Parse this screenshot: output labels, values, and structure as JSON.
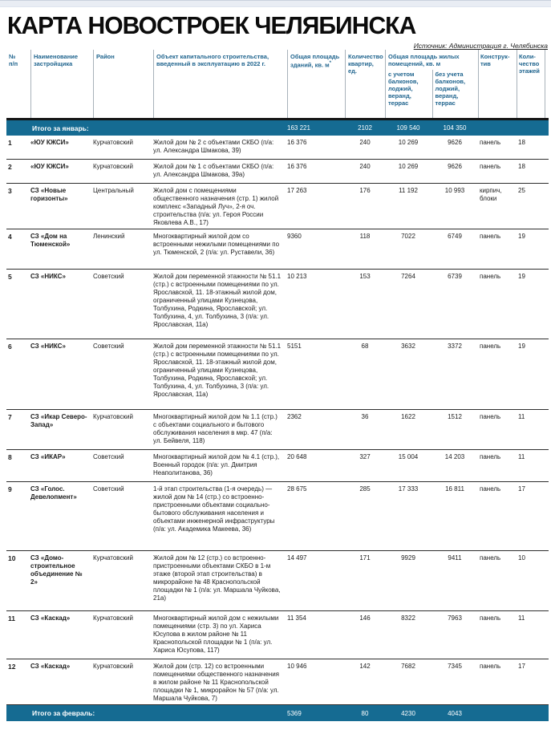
{
  "page": {
    "title": "КАРТА НОВОСТРОЕК ЧЕЛЯБИНСКА",
    "source": "Источник: Администрация г. Челябинска"
  },
  "colors": {
    "accent_teal": "#156b92",
    "header_text_blue": "#1f648e"
  },
  "table": {
    "headers": {
      "num": "№\nп/п",
      "developer": "Наименование застройщика",
      "district": "Район",
      "object": "Объект капитального строительства, введенный в эксплуатацию в 2022 г.",
      "total_area": "Общая площадь зданий, кв. м",
      "total_area_sup": "*",
      "apartments": "Количество квартир, ед.",
      "living_area_group": "Общая площадь жилых помещений, кв. м",
      "with_balconies": "с учетом балконов, лоджий, веранд, террас",
      "without_balconies": "без учета балконов, лоджий, веранд, террас",
      "construction": "Конструк­тив",
      "floors": "Коли­чество этажей"
    },
    "summary_january": {
      "label": "Итого за январь:",
      "total_area": "163 221",
      "apartments": "2102",
      "area_with": "109 540",
      "area_without": "104 350"
    },
    "summary_february": {
      "label": "Итого за февраль:",
      "total_area": "5369",
      "apartments": "80",
      "area_with": "4230",
      "area_without": "4043"
    },
    "rows": [
      {
        "num": "1",
        "developer": "«ЮУ КЖСИ»",
        "district": "Курчатовский",
        "object": "Жилой дом № 2 с объектами СКБО (п/а: ул. Александра Шмакова, 39)",
        "total_area": "16 376",
        "apartments": "240",
        "area_with": "10 269",
        "area_without": "9626",
        "construction": "панель",
        "floors": "18"
      },
      {
        "num": "2",
        "developer": "«ЮУ КЖСИ»",
        "district": "Курчатовский",
        "object": "Жилой дом № 1 с объектами СКБО (п/а: ул. Александра Шмакова, 39а)",
        "total_area": "16 376",
        "apartments": "240",
        "area_with": "10 269",
        "area_without": "9626",
        "construction": "панель",
        "floors": "18"
      },
      {
        "num": "3",
        "developer": "СЗ «Новые горизонты»",
        "district": "Центральный",
        "object": "Жилой дом с помещениями общественного назначения (стр. 1) жилой комплекс «Западный Луч», 2-я оч. строительства (п/а: ул. Героя России Яковлева А.В., 17)",
        "total_area": "17 263",
        "apartments": "176",
        "area_with": "11 192",
        "area_without": "10 993",
        "construction": "кирпич, блоки",
        "floors": "25"
      },
      {
        "num": "4",
        "developer": "СЗ «Дом на Тюменской»",
        "district": "Ленинский",
        "object": "Многоквартирный жилой дом со встроенными нежилыми помещениями по ул. Тюменской, 2 (п/а: ул. Руставели, 36)",
        "total_area": "9360",
        "apartments": "118",
        "area_with": "7022",
        "area_without": "6749",
        "construction": "панель",
        "floors": "19"
      },
      {
        "num": "5",
        "developer": "СЗ «НИКС»",
        "district": "Советский",
        "object": "Жилой дом переменной этажности № 51.1 (стр.) с встроенными помещениями по ул. Ярославской, 11. 18-этажный жилой дом, ограниченный улицами Кузнецова, Толбухина, Родкина, Ярославской; ул. Толбухина, 4, ул. Толбухина, 3 (п/а: ул. Ярославская, 11а)",
        "total_area": "10 213",
        "apartments": "153",
        "area_with": "7264",
        "area_without": "6739",
        "construction": "панель",
        "floors": "19"
      },
      {
        "num": "6",
        "developer": "СЗ «НИКС»",
        "district": "Советский",
        "object": "Жилой дом переменной этажности № 51.1 (стр.) с встроенными помещениями по ул. Ярославской, 11. 18-этажный жилой дом, ограниченный улицами Кузнецова, Толбухина, Родкина, Ярославской; ул. Толбухина, 4, ул. Толбухина, 3 (п/а: ул. Ярославская, 11а)",
        "total_area": "5151",
        "apartments": "68",
        "area_with": "3632",
        "area_without": "3372",
        "construction": "панель",
        "floors": "19"
      },
      {
        "num": "7",
        "developer": "СЗ «Икар Северо-Запад»",
        "district": "Курчатовский",
        "object": "Многоквартирный жилой дом № 1.1 (стр.) с объектами социального и бытового обслуживания населения в мкр. 47 (п/а: ул. Бейвеля, 118)",
        "total_area": "2362",
        "apartments": "36",
        "area_with": "1622",
        "area_without": "1512",
        "construction": "панель",
        "floors": "11"
      },
      {
        "num": "8",
        "developer": "СЗ «ИКАР»",
        "district": "Советский",
        "object": "Многоквартирный жилой дом № 4.1 (стр.), Военный городок (п/а: ул. Дмитрия Неаполитанова, 36)",
        "total_area": "20 648",
        "apartments": "327",
        "area_with": "15 004",
        "area_without": "14 203",
        "construction": "панель",
        "floors": "11"
      },
      {
        "num": "9",
        "developer": "СЗ «Голос. Девелопмент»",
        "district": "Советский",
        "object": "1-й этап строительства (1-я очередь) — жилой дом № 14 (стр.) со встроенно-пристроенными объектами социально-бытового обслуживания населения и объектами инженерной инфраструктуры (п/а: ул. Академика Макеева, 36)",
        "total_area": "28 675",
        "apartments": "285",
        "area_with": "17 333",
        "area_without": "16 811",
        "construction": "панель",
        "floors": "17"
      },
      {
        "num": "10",
        "developer": "СЗ «Домо­строительное объединение № 2»",
        "district": "Курчатовский",
        "object": "Жилой дом № 12 (стр.) со встроенно-пристроенными объектами СКБО в 1-м этаже (второй этап строительства) в микрорайоне № 48 Краснопольской площадки № 1 (п/а: ул. Маршала Чуйкова, 21а)",
        "total_area": "14 497",
        "apartments": "171",
        "area_with": "9929",
        "area_without": "9411",
        "construction": "панель",
        "floors": "10"
      },
      {
        "num": "11",
        "developer": "СЗ «Каскад»",
        "district": "Курчатовский",
        "object": "Многоквартирный жилой дом с нежилыми помещениями (стр. 3) по ул. Хариса Юсупова в жилом районе № 11 Краснопольской площадки № 1 (п/а: ул. Хариса Юсупова, 117)",
        "total_area": "11 354",
        "apartments": "146",
        "area_with": "8322",
        "area_without": "7963",
        "construction": "панель",
        "floors": "11"
      },
      {
        "num": "12",
        "developer": "СЗ «Каскад»",
        "district": "Курчатовский",
        "object": "Жилой дом (стр. 12) со встроенными помещениями общественного назначения в жилом районе № 11 Краснопольской площадки № 1, микрорайон № 57 (п/а: ул. Маршала Чуйкова, 7)",
        "total_area": "10 946",
        "apartments": "142",
        "area_with": "7682",
        "area_without": "7345",
        "construction": "панель",
        "floors": "17"
      }
    ]
  }
}
